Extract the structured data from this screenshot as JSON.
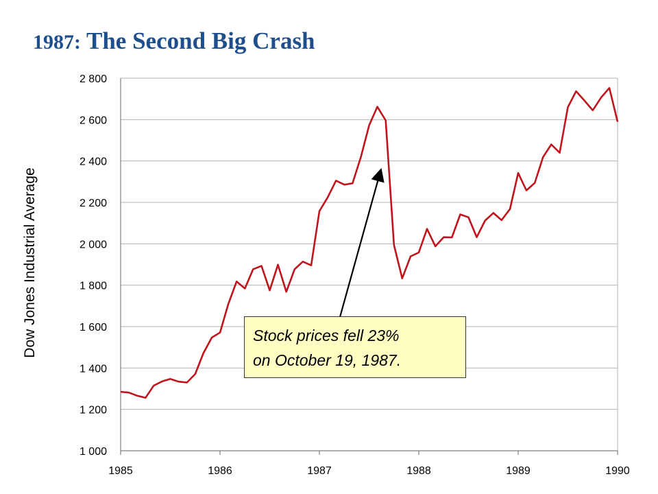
{
  "title": {
    "year": "1987:",
    "text": "The Second Big Crash"
  },
  "annotation": {
    "line1": "Stock prices fell 23%",
    "line2": "on October 19, 1987."
  },
  "colors": {
    "title": "#1f4e8c",
    "series": "#c0141c",
    "callout_bg": "#ffffc4"
  },
  "chart_data": {
    "type": "line",
    "ylabel": "Dow Jones Industrial Average",
    "xlabel": "",
    "ylim": [
      1000,
      2800
    ],
    "xlim": [
      1985,
      1990
    ],
    "yticks": [
      1000,
      1200,
      1400,
      1600,
      1800,
      2000,
      2200,
      2400,
      2600,
      2800
    ],
    "ytick_labels": [
      "1 000",
      "1 200",
      "1 400",
      "1 600",
      "1 800",
      "2 000",
      "2 200",
      "2 400",
      "2 600",
      "2 800"
    ],
    "xticks": [
      1985,
      1986,
      1987,
      1988,
      1989,
      1990
    ],
    "xtick_labels": [
      "1985",
      "1986",
      "1987",
      "1988",
      "1989",
      "1990"
    ],
    "grid": "horizontal",
    "series": [
      {
        "x": [
          1985.0,
          1985.083,
          1985.167,
          1985.25,
          1985.333,
          1985.417,
          1985.5,
          1985.583,
          1985.667,
          1985.75,
          1985.833,
          1985.917,
          1986.0,
          1986.083,
          1986.167,
          1986.25,
          1986.333,
          1986.417,
          1986.5,
          1986.583,
          1986.667,
          1986.75,
          1986.833,
          1986.917,
          1987.0,
          1987.083,
          1987.167,
          1987.25,
          1987.333,
          1987.417,
          1987.5,
          1987.583,
          1987.667,
          1987.75,
          1987.833,
          1987.917,
          1988.0,
          1988.083,
          1988.167,
          1988.25,
          1988.333,
          1988.417,
          1988.5,
          1988.583,
          1988.667,
          1988.75,
          1988.833,
          1988.917,
          1989.0,
          1989.083,
          1989.167,
          1989.25,
          1989.333,
          1989.417,
          1989.5,
          1989.583,
          1989.667,
          1989.75,
          1989.833,
          1989.917,
          1990.0
        ],
        "values": [
          1285,
          1281,
          1266,
          1256,
          1315,
          1335,
          1347,
          1334,
          1330,
          1371,
          1472,
          1547,
          1571,
          1708,
          1818,
          1784,
          1877,
          1893,
          1775,
          1899,
          1768,
          1877,
          1914,
          1896,
          2158,
          2224,
          2305,
          2286,
          2292,
          2419,
          2572,
          2662,
          2596,
          1994,
          1833,
          1939,
          1958,
          2072,
          1988,
          2032,
          2031,
          2142,
          2128,
          2032,
          2112,
          2149,
          2114,
          2168,
          2342,
          2258,
          2294,
          2419,
          2480,
          2440,
          2660,
          2737,
          2692,
          2645,
          2706,
          2753,
          2590
        ]
      }
    ],
    "annotations": [
      {
        "text": "Stock prices fell 23% on October 19, 1987.",
        "points_to": {
          "x": 1987.62,
          "y": 2360
        }
      }
    ]
  }
}
